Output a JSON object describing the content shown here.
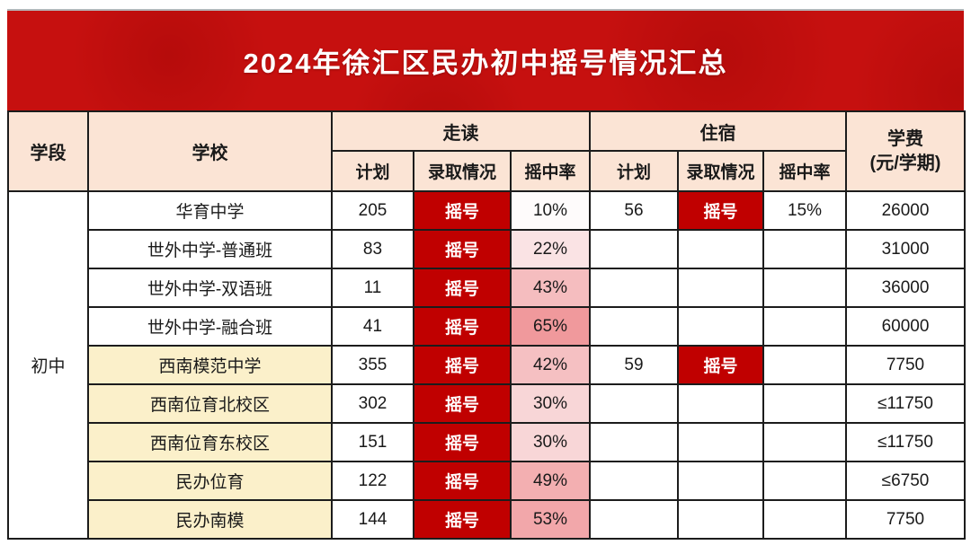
{
  "page": {
    "title": "2024年徐汇区民办初中摇号情况汇总"
  },
  "colors": {
    "banner_red": "#C6100F",
    "status_red": "#C00000",
    "header_peach": "#FBE4D5",
    "school_yellow": "#FBF0CA",
    "border_dark": "#1C1C1C"
  },
  "table": {
    "headers": {
      "stage": "学段",
      "school": "学校",
      "day_group": "走读",
      "boarding_group": "住宿",
      "plan": "计划",
      "status": "录取情况",
      "rate": "摇中率",
      "tuition_line1": "学费",
      "tuition_line2": "(元/学期)"
    },
    "stage": "初中",
    "rows": [
      {
        "school": "华育中学",
        "highlight": false,
        "day": {
          "plan": "205",
          "status": "摇号",
          "rate": "10%",
          "rate_bg": "#FEFBFB"
        },
        "boarding": {
          "plan": "56",
          "status": "摇号",
          "rate": "15%"
        },
        "tuition": "26000"
      },
      {
        "school": "世外中学-普通班",
        "highlight": false,
        "day": {
          "plan": "83",
          "status": "摇号",
          "rate": "22%",
          "rate_bg": "#FAE3E4"
        },
        "boarding": {
          "plan": "",
          "status": "",
          "rate": ""
        },
        "tuition": "31000"
      },
      {
        "school": "世外中学-双语班",
        "highlight": false,
        "day": {
          "plan": "11",
          "status": "摇号",
          "rate": "43%",
          "rate_bg": "#F5BDBF"
        },
        "boarding": {
          "plan": "",
          "status": "",
          "rate": ""
        },
        "tuition": "36000"
      },
      {
        "school": "世外中学-融合班",
        "highlight": false,
        "day": {
          "plan": "41",
          "status": "摇号",
          "rate": "65%",
          "rate_bg": "#F0999C"
        },
        "boarding": {
          "plan": "",
          "status": "",
          "rate": ""
        },
        "tuition": "60000"
      },
      {
        "school": "西南模范中学",
        "highlight": true,
        "day": {
          "plan": "355",
          "status": "摇号",
          "rate": "42%",
          "rate_bg": "#F5C0C2"
        },
        "boarding": {
          "plan": "59",
          "status": "摇号",
          "rate": ""
        },
        "tuition": "7750"
      },
      {
        "school": "西南位育北校区",
        "highlight": true,
        "day": {
          "plan": "302",
          "status": "摇号",
          "rate": "30%",
          "rate_bg": "#F8D6D7"
        },
        "boarding": {
          "plan": "",
          "status": "",
          "rate": ""
        },
        "tuition": "≤11750"
      },
      {
        "school": "西南位育东校区",
        "highlight": true,
        "day": {
          "plan": "151",
          "status": "摇号",
          "rate": "30%",
          "rate_bg": "#F8D6D7"
        },
        "boarding": {
          "plan": "",
          "status": "",
          "rate": ""
        },
        "tuition": "≤11750"
      },
      {
        "school": "民办位育",
        "highlight": true,
        "day": {
          "plan": "122",
          "status": "摇号",
          "rate": "49%",
          "rate_bg": "#F3AFB1"
        },
        "boarding": {
          "plan": "",
          "status": "",
          "rate": ""
        },
        "tuition": "≤6750"
      },
      {
        "school": "民办南模",
        "highlight": true,
        "day": {
          "plan": "144",
          "status": "摇号",
          "rate": "53%",
          "rate_bg": "#F2A7AA"
        },
        "boarding": {
          "plan": "",
          "status": "",
          "rate": ""
        },
        "tuition": "7750"
      }
    ]
  }
}
